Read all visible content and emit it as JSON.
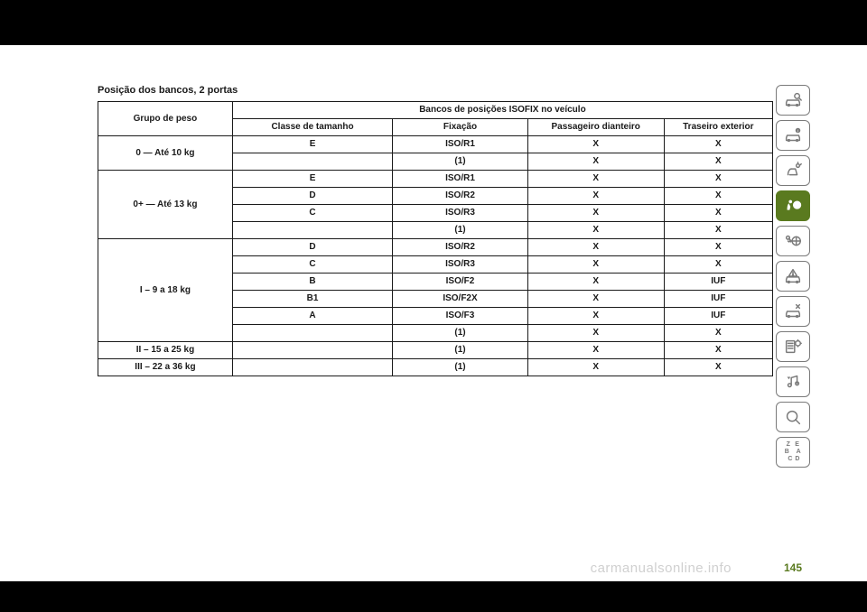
{
  "title": "Posição dos bancos, 2 portas",
  "page_number": "145",
  "watermark": "carmanualsonline.info",
  "headers": {
    "group": "Grupo de peso",
    "positions": "Bancos de posições ISOFIX no veículo",
    "size_class": "Classe de tamanho",
    "fixing": "Fixação",
    "front_passenger": "Passageiro dianteiro",
    "rear_outer": "Traseiro exterior"
  },
  "groups": [
    {
      "label": "0 — Até 10 kg",
      "rows": [
        {
          "size": "E",
          "fix": "ISO/R1",
          "front": "X",
          "rear": "X"
        },
        {
          "size": "",
          "fix": "(1)",
          "front": "X",
          "rear": "X"
        }
      ]
    },
    {
      "label": "0+ — Até 13 kg",
      "rows": [
        {
          "size": "E",
          "fix": "ISO/R1",
          "front": "X",
          "rear": "X"
        },
        {
          "size": "D",
          "fix": "ISO/R2",
          "front": "X",
          "rear": "X"
        },
        {
          "size": "C",
          "fix": "ISO/R3",
          "front": "X",
          "rear": "X"
        },
        {
          "size": "",
          "fix": "(1)",
          "front": "X",
          "rear": "X"
        }
      ]
    },
    {
      "label": "I – 9 a 18 kg",
      "rows": [
        {
          "size": "D",
          "fix": "ISO/R2",
          "front": "X",
          "rear": "X"
        },
        {
          "size": "C",
          "fix": "ISO/R3",
          "front": "X",
          "rear": "X"
        },
        {
          "size": "B",
          "fix": "ISO/F2",
          "front": "X",
          "rear": "IUF"
        },
        {
          "size": "B1",
          "fix": "ISO/F2X",
          "front": "X",
          "rear": "IUF"
        },
        {
          "size": "A",
          "fix": "ISO/F3",
          "front": "X",
          "rear": "IUF"
        },
        {
          "size": "",
          "fix": "(1)",
          "front": "X",
          "rear": "X"
        }
      ]
    },
    {
      "label": "II – 15 a 25 kg",
      "rows": [
        {
          "size": "",
          "fix": "(1)",
          "front": "X",
          "rear": "X"
        }
      ]
    },
    {
      "label": "III – 22 a 36 kg",
      "rows": [
        {
          "size": "",
          "fix": "(1)",
          "front": "X",
          "rear": "X"
        }
      ]
    }
  ],
  "side_icons": [
    {
      "name": "car-search",
      "active": false
    },
    {
      "name": "car-info",
      "active": false
    },
    {
      "name": "seat-light",
      "active": false
    },
    {
      "name": "airbag",
      "active": true
    },
    {
      "name": "key-wheel",
      "active": false
    },
    {
      "name": "car-warning",
      "active": false
    },
    {
      "name": "car-service",
      "active": false
    },
    {
      "name": "settings-list",
      "active": false
    },
    {
      "name": "nav-music",
      "active": false
    },
    {
      "name": "search",
      "active": false
    },
    {
      "name": "index",
      "active": false
    }
  ],
  "colors": {
    "accent": "#5a7a1f",
    "icon_border": "#7a7a7a",
    "text": "#1a1a1a",
    "watermark": "#d0d0d0",
    "background": "#ffffff",
    "black_bar": "#000000"
  }
}
